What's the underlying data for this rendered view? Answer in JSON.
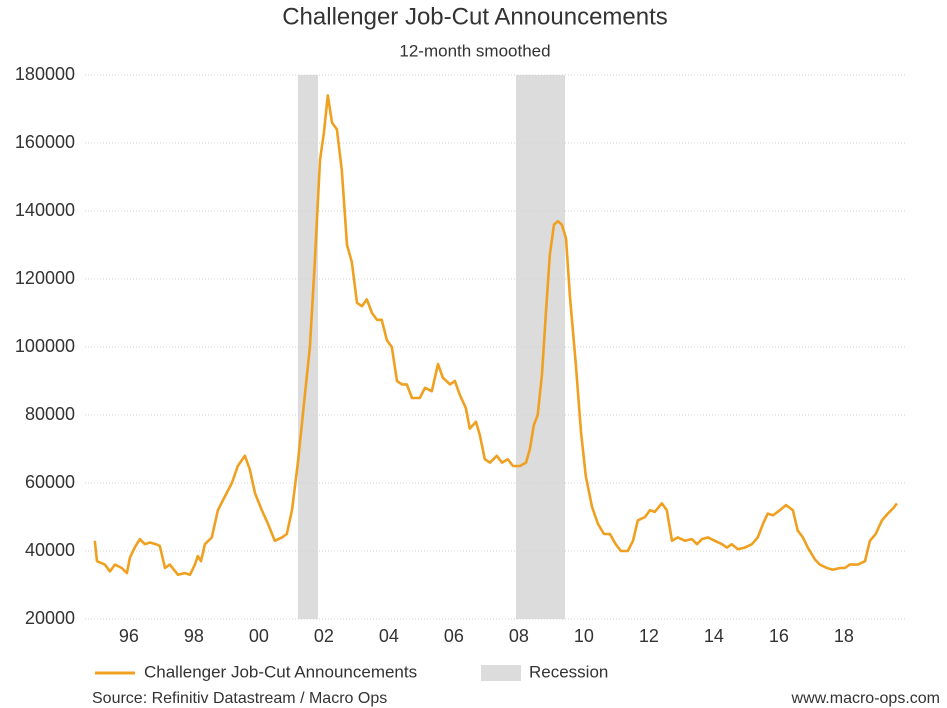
{
  "chart_data": {
    "type": "line",
    "title": "Challenger Job-Cut Announcements",
    "subtitle": "12-month smoothed",
    "source": "Source: Refinitiv Datastream / Macro Ops",
    "website": "www.macro-ops.com",
    "xlim": [
      1994.65,
      2019.88
    ],
    "ylim": [
      20000,
      180000
    ],
    "yticks": [
      20000,
      40000,
      60000,
      80000,
      100000,
      120000,
      140000,
      160000,
      180000
    ],
    "xticks": [
      {
        "value": 1996,
        "label": "96"
      },
      {
        "value": 1998,
        "label": "98"
      },
      {
        "value": 2000,
        "label": "00"
      },
      {
        "value": 2002,
        "label": "02"
      },
      {
        "value": 2004,
        "label": "04"
      },
      {
        "value": 2006,
        "label": "06"
      },
      {
        "value": 2008,
        "label": "08"
      },
      {
        "value": 2010,
        "label": "10"
      },
      {
        "value": 2012,
        "label": "12"
      },
      {
        "value": 2014,
        "label": "14"
      },
      {
        "value": 2016,
        "label": "16"
      },
      {
        "value": 2018,
        "label": "18"
      }
    ],
    "grid": true,
    "recession": {
      "name": "Recession",
      "color": "#dcdcdc",
      "periods": [
        [
          2001.2,
          2001.82
        ],
        [
          2007.91,
          2009.42
        ]
      ]
    },
    "x": [
      1994.95,
      1995.02,
      1995.26,
      1995.42,
      1995.57,
      1995.78,
      1995.94,
      1996.03,
      1996.18,
      1996.34,
      1996.49,
      1996.65,
      1996.83,
      1996.95,
      1997.11,
      1997.26,
      1997.51,
      1997.72,
      1997.88,
      1998.03,
      1998.12,
      1998.22,
      1998.34,
      1998.55,
      1998.74,
      1998.95,
      1999.17,
      1999.35,
      1999.57,
      1999.72,
      1999.88,
      2000.09,
      2000.28,
      2000.49,
      2000.71,
      2000.86,
      2001.02,
      2001.2,
      2001.35,
      2001.57,
      2001.72,
      2001.88,
      2002.0,
      2002.12,
      2002.25,
      2002.4,
      2002.55,
      2002.71,
      2002.86,
      2003.02,
      2003.17,
      2003.32,
      2003.48,
      2003.63,
      2003.78,
      2003.94,
      2004.09,
      2004.25,
      2004.4,
      2004.55,
      2004.71,
      2004.95,
      2005.11,
      2005.32,
      2005.51,
      2005.66,
      2005.88,
      2006.03,
      2006.18,
      2006.37,
      2006.49,
      2006.68,
      2006.8,
      2006.95,
      2007.11,
      2007.32,
      2007.48,
      2007.66,
      2007.82,
      2008.03,
      2008.22,
      2008.34,
      2008.46,
      2008.58,
      2008.71,
      2008.83,
      2008.95,
      2009.08,
      2009.2,
      2009.32,
      2009.45,
      2009.57,
      2009.75,
      2009.91,
      2010.06,
      2010.25,
      2010.43,
      2010.62,
      2010.8,
      2010.98,
      2011.14,
      2011.35,
      2011.51,
      2011.66,
      2011.88,
      2012.03,
      2012.18,
      2012.4,
      2012.55,
      2012.71,
      2012.89,
      2013.11,
      2013.32,
      2013.48,
      2013.63,
      2013.82,
      2014.03,
      2014.25,
      2014.4,
      2014.55,
      2014.74,
      2014.95,
      2015.17,
      2015.35,
      2015.51,
      2015.66,
      2015.82,
      2016.03,
      2016.22,
      2016.43,
      2016.58,
      2016.74,
      2016.89,
      2017.11,
      2017.26,
      2017.48,
      2017.66,
      2017.88,
      2018.03,
      2018.18,
      2018.43,
      2018.65,
      2018.8,
      2018.98,
      2019.17,
      2019.35,
      2019.51,
      2019.63
    ],
    "series": [
      {
        "name": "Challenger Job-Cut Announcements",
        "color": "#f0a020",
        "values": [
          43000,
          37000,
          36000,
          34000,
          36000,
          35000,
          33500,
          38000,
          41000,
          43500,
          42000,
          42500,
          42000,
          41500,
          35000,
          36000,
          33000,
          33500,
          33000,
          36000,
          38500,
          37000,
          42000,
          44000,
          52000,
          56000,
          60000,
          65000,
          68000,
          64000,
          57000,
          52000,
          48000,
          43000,
          44000,
          45000,
          52000,
          66000,
          80000,
          100000,
          125000,
          155000,
          163000,
          174000,
          166000,
          164000,
          152000,
          130000,
          125000,
          113000,
          112000,
          114000,
          110000,
          108000,
          108000,
          102000,
          100000,
          90000,
          89000,
          89000,
          85000,
          85000,
          88000,
          87000,
          95000,
          91000,
          89000,
          90000,
          86000,
          82000,
          76000,
          78000,
          74000,
          67000,
          66000,
          68000,
          66000,
          67000,
          65000,
          65000,
          66000,
          70000,
          77000,
          80000,
          92000,
          110000,
          127000,
          136000,
          137000,
          136000,
          132000,
          115000,
          95000,
          75000,
          62000,
          53000,
          48000,
          45000,
          45000,
          42000,
          40000,
          40000,
          43000,
          49000,
          50000,
          52000,
          51500,
          54000,
          52000,
          43000,
          44000,
          43000,
          43500,
          42000,
          43500,
          44000,
          43000,
          42000,
          41000,
          42000,
          40500,
          41000,
          42000,
          44000,
          48000,
          51000,
          50500,
          52000,
          53500,
          52000,
          46000,
          44000,
          41000,
          37500,
          36000,
          35000,
          34500,
          35000,
          35000,
          36000,
          36000,
          37000,
          43000,
          45000,
          49000,
          51000,
          52500,
          54000
        ]
      }
    ]
  }
}
